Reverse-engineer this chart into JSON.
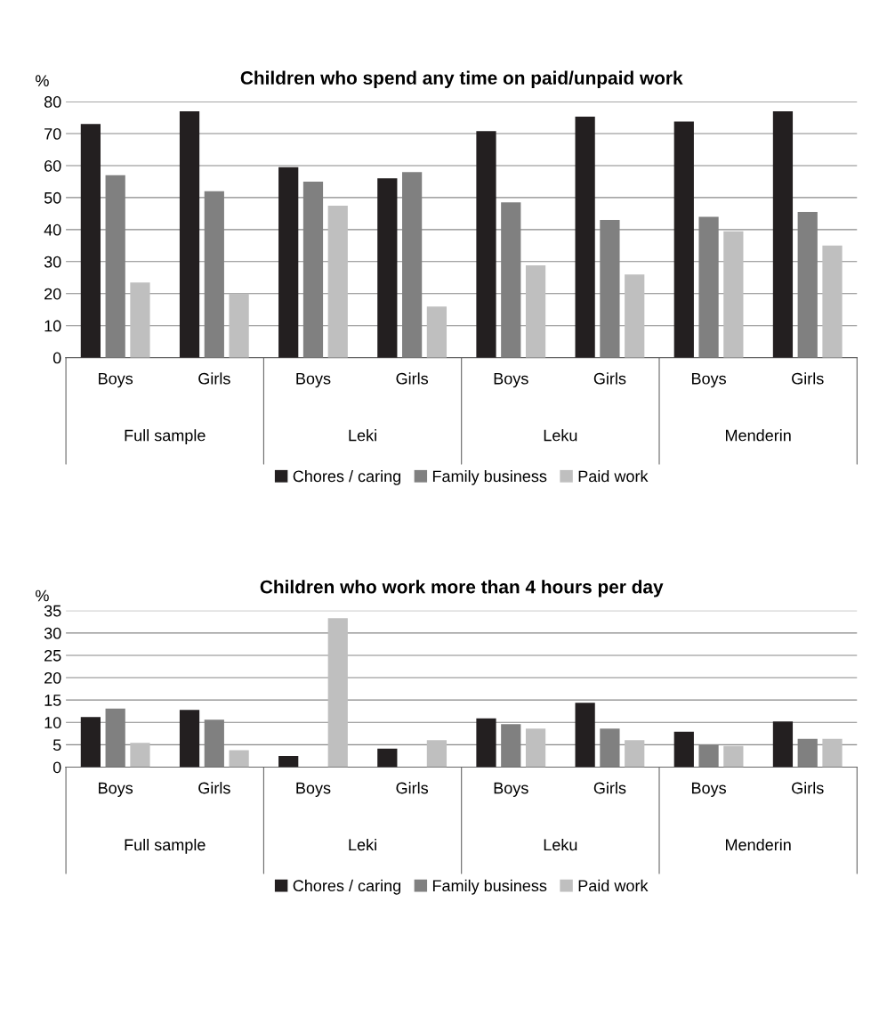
{
  "chart_data": [
    {
      "type": "bar",
      "title": "Children who spend any time on paid/unpaid work",
      "ylabel": "%",
      "categories": [
        "Boys",
        "Girls",
        "Boys",
        "Girls",
        "Boys",
        "Girls",
        "Boys",
        "Girls"
      ],
      "annotations": [
        "Full sample",
        "Leki",
        "Leku",
        "Menderin"
      ],
      "series": [
        {
          "name": "Chores / caring",
          "color": "#231f20",
          "values": [
            73,
            77,
            59.5,
            56,
            70.8,
            75.3,
            73.8,
            77
          ]
        },
        {
          "name": "Family business",
          "color": "#808080",
          "values": [
            57,
            52,
            55,
            58,
            48.5,
            43,
            44,
            45.5
          ]
        },
        {
          "name": "Paid work",
          "color": "#bfbfbf",
          "values": [
            23.5,
            20,
            47.5,
            16,
            28.8,
            26,
            39.5,
            35
          ]
        }
      ],
      "ylim": [
        0,
        80
      ],
      "yticks": [
        0,
        10,
        20,
        30,
        40,
        50,
        60,
        70,
        80
      ],
      "grid": "y",
      "legend": "bottom"
    },
    {
      "type": "bar",
      "title": "Children who work more than 4 hours per day",
      "ylabel": "%",
      "categories": [
        "Boys",
        "Girls",
        "Boys",
        "Girls",
        "Boys",
        "Girls",
        "Boys",
        "Girls"
      ],
      "annotations": [
        "Full sample",
        "Leki",
        "Leku",
        "Menderin"
      ],
      "series": [
        {
          "name": "Chores / caring",
          "color": "#231f20",
          "values": [
            11.2,
            12.8,
            2.5,
            4.1,
            10.9,
            14.4,
            7.9,
            10.2
          ]
        },
        {
          "name": "Family business",
          "color": "#808080",
          "values": [
            13.1,
            10.6,
            null,
            null,
            9.6,
            8.6,
            5,
            6.3
          ]
        },
        {
          "name": "Paid work",
          "color": "#bfbfbf",
          "values": [
            5.4,
            3.8,
            33.3,
            6,
            8.6,
            6,
            4.7,
            6.3
          ]
        }
      ],
      "ylim": [
        0,
        35
      ],
      "yticks": [
        0,
        5,
        10,
        15,
        20,
        25,
        30,
        35
      ],
      "grid": "y",
      "legend": "bottom"
    }
  ]
}
